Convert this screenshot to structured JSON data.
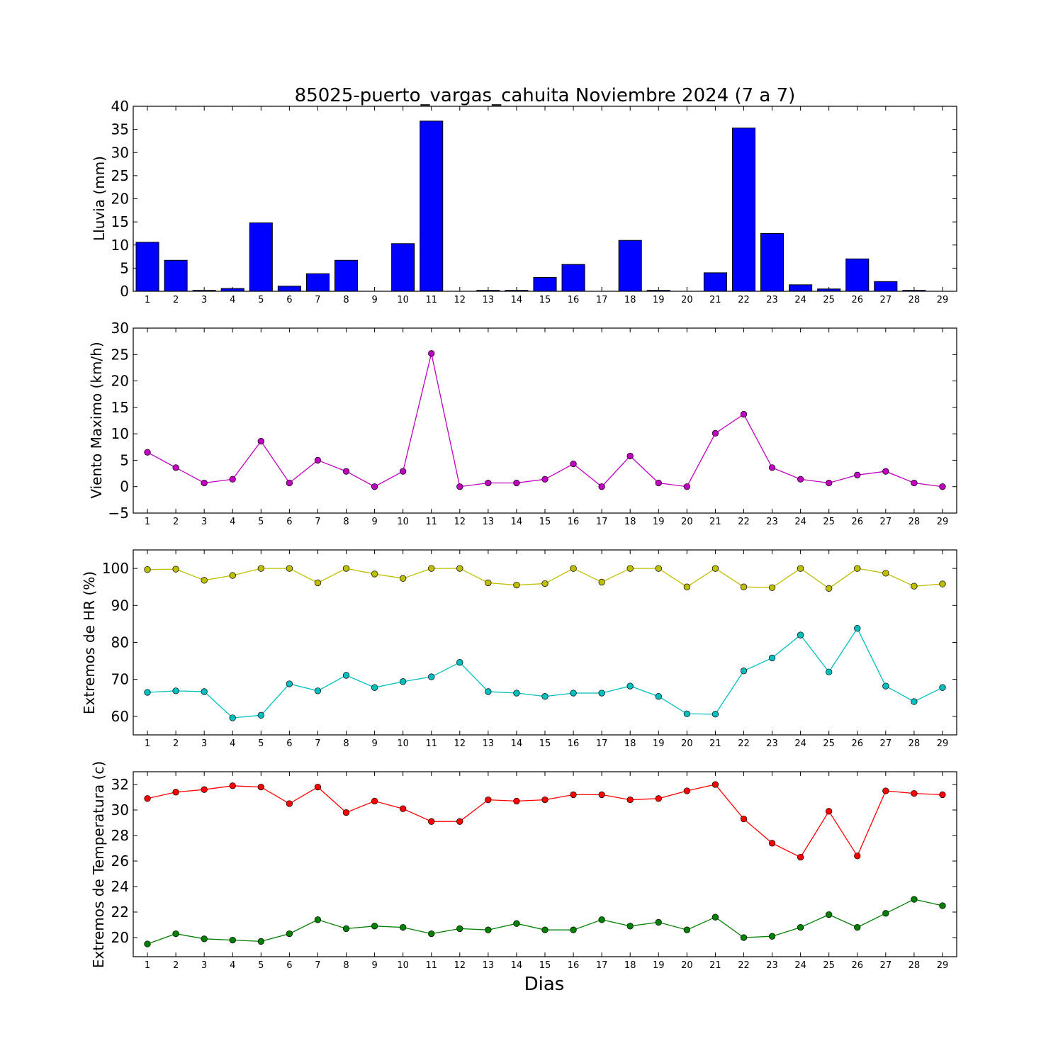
{
  "title": "85025-puerto_vargas_cahuita Noviembre 2024  (7 a 7)",
  "xlabel": "Dias",
  "colors": {
    "rain": "#0000ff",
    "wind": "#bf00bf",
    "hr_max": "#bfbf00",
    "hr_min": "#00bfbf",
    "temp_max": "#ff0000",
    "temp_min": "#008000"
  },
  "chart_data": [
    {
      "type": "bar",
      "ylabel": "Lluvia (mm)",
      "categories": [
        "1",
        "2",
        "3",
        "4",
        "5",
        "6",
        "7",
        "8",
        "9",
        "10",
        "11",
        "12",
        "13",
        "14",
        "15",
        "16",
        "17",
        "18",
        "19",
        "20",
        "21",
        "22",
        "23",
        "24",
        "25",
        "26",
        "27",
        "28",
        "29"
      ],
      "values": [
        10.6,
        6.7,
        0.2,
        0.6,
        14.8,
        1.1,
        3.8,
        6.7,
        0.0,
        10.3,
        36.8,
        0.0,
        0.2,
        0.2,
        3.0,
        5.8,
        0.0,
        11.0,
        0.2,
        0.0,
        4.0,
        35.3,
        12.5,
        1.4,
        0.5,
        7.0,
        2.1,
        0.2,
        0.0
      ],
      "ylim": [
        0,
        40
      ],
      "yticks": [
        0,
        5,
        10,
        15,
        20,
        25,
        30,
        35,
        40
      ],
      "grid": false
    },
    {
      "type": "line",
      "ylabel": "Viento Maximo (km/h)",
      "x": [
        1,
        2,
        3,
        4,
        5,
        6,
        7,
        8,
        9,
        10,
        11,
        12,
        13,
        14,
        15,
        16,
        17,
        18,
        19,
        20,
        21,
        22,
        23,
        24,
        25,
        26,
        27,
        28,
        29
      ],
      "series": [
        {
          "values": [
            6.5,
            3.6,
            0.7,
            1.4,
            8.6,
            0.7,
            5.0,
            2.9,
            0.0,
            2.9,
            25.2,
            0.0,
            0.7,
            0.7,
            1.4,
            4.3,
            0.0,
            5.8,
            0.7,
            0.0,
            10.1,
            13.7,
            3.6,
            1.4,
            0.7,
            2.2,
            2.9,
            0.7,
            0.0
          ]
        }
      ],
      "ylim": [
        -5,
        30
      ],
      "yticks": [
        -5,
        0,
        5,
        10,
        15,
        20,
        25,
        30
      ],
      "grid": false
    },
    {
      "type": "line",
      "ylabel": "Extremos de HR (%)",
      "x": [
        1,
        2,
        3,
        4,
        5,
        6,
        7,
        8,
        9,
        10,
        11,
        12,
        13,
        14,
        15,
        16,
        17,
        18,
        19,
        20,
        21,
        22,
        23,
        24,
        25,
        26,
        27,
        28,
        29
      ],
      "series": [
        {
          "values": [
            99.7,
            99.8,
            96.8,
            98.1,
            100,
            100,
            96.1,
            100,
            98.5,
            97.3,
            100,
            100,
            96.1,
            95.5,
            95.9,
            100,
            96.3,
            100,
            100,
            95.0,
            100,
            95.0,
            94.8,
            100,
            94.6,
            100,
            98.7,
            95.2,
            95.8
          ]
        },
        {
          "values": [
            66.5,
            66.9,
            66.7,
            59.6,
            60.3,
            68.8,
            66.9,
            71.1,
            67.8,
            69.4,
            70.7,
            74.6,
            66.7,
            66.3,
            65.4,
            66.3,
            66.3,
            68.2,
            65.4,
            60.7,
            60.6,
            72.3,
            75.8,
            82.0,
            72.0,
            83.8,
            68.2,
            64.0,
            67.8
          ]
        }
      ],
      "ylim": [
        55,
        105
      ],
      "yticks": [
        60,
        70,
        80,
        90,
        100
      ],
      "grid": false
    },
    {
      "type": "line",
      "ylabel": "Extremos de Temperatura (c)",
      "x": [
        1,
        2,
        3,
        4,
        5,
        6,
        7,
        8,
        9,
        10,
        11,
        12,
        13,
        14,
        15,
        16,
        17,
        18,
        19,
        20,
        21,
        22,
        23,
        24,
        25,
        26,
        27,
        28,
        29
      ],
      "series": [
        {
          "values": [
            30.9,
            31.4,
            31.6,
            31.9,
            31.8,
            30.5,
            31.8,
            29.8,
            30.7,
            30.1,
            29.1,
            29.1,
            30.8,
            30.7,
            30.8,
            31.2,
            31.2,
            30.8,
            30.9,
            31.5,
            32.0,
            29.3,
            27.4,
            26.3,
            29.9,
            26.4,
            31.5,
            31.3,
            31.2
          ]
        },
        {
          "values": [
            19.5,
            20.3,
            19.9,
            19.8,
            19.7,
            20.3,
            21.4,
            20.7,
            20.9,
            20.8,
            20.3,
            20.7,
            20.6,
            21.1,
            20.6,
            20.6,
            21.4,
            20.9,
            21.2,
            20.6,
            21.6,
            20.0,
            20.1,
            20.8,
            21.8,
            20.8,
            21.9,
            23.0,
            22.5
          ]
        }
      ],
      "ylim": [
        18.5,
        33
      ],
      "yticks": [
        20,
        22,
        24,
        26,
        28,
        30,
        32
      ],
      "grid": false
    }
  ]
}
